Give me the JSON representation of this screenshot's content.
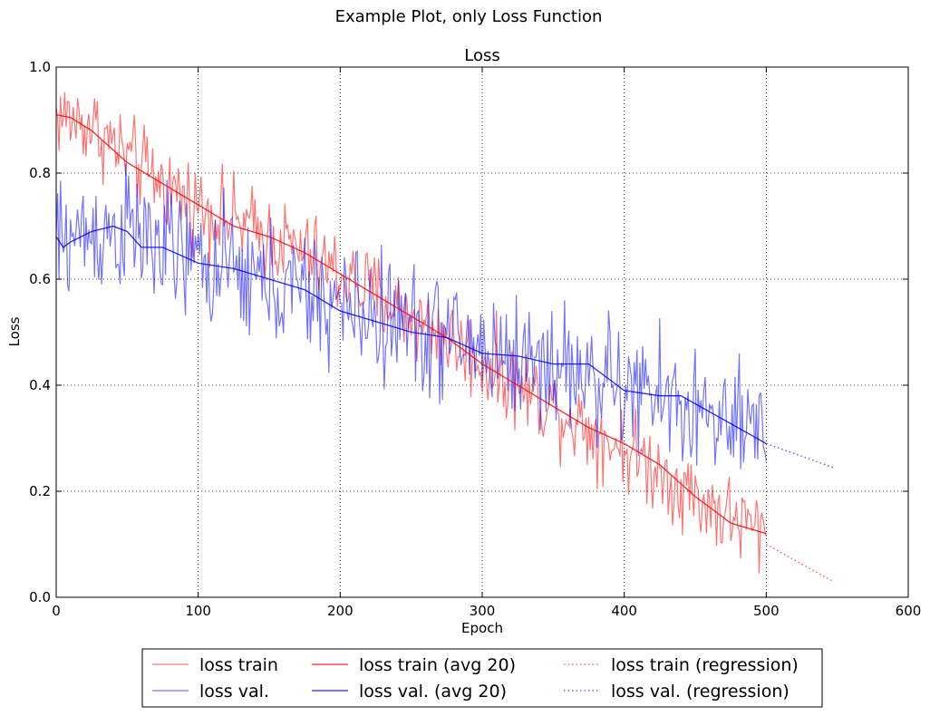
{
  "figure_title": "Example Plot, only Loss Function",
  "chart_data": {
    "type": "line",
    "title": "Loss",
    "xlabel": "Epoch",
    "ylabel": "Loss",
    "xlim": [
      0,
      600
    ],
    "ylim": [
      0.0,
      1.0
    ],
    "grid": true,
    "legend_position": "bottom-center (below plot), 3 columns",
    "x_ticks": [
      0,
      100,
      200,
      300,
      400,
      500,
      600
    ],
    "x_tick_labels": [
      "0",
      "100",
      "200",
      "300",
      "400",
      "500",
      "600"
    ],
    "y_ticks": [
      0.0,
      0.2,
      0.4,
      0.6,
      0.8,
      1.0
    ],
    "y_tick_labels": [
      "0.0",
      "0.2",
      "0.4",
      "0.6",
      "0.8",
      "1.0"
    ],
    "series": [
      {
        "name": "loss train",
        "style": "solid",
        "color": "#ff0000",
        "opacity": 0.55,
        "noisy": true,
        "noise_amplitude": 0.04,
        "x": [
          0,
          25,
          50,
          75,
          100,
          125,
          150,
          175,
          200,
          225,
          250,
          275,
          300,
          325,
          350,
          375,
          400,
          425,
          450,
          475,
          500
        ],
        "values": [
          0.91,
          0.89,
          0.83,
          0.78,
          0.74,
          0.71,
          0.68,
          0.65,
          0.61,
          0.57,
          0.53,
          0.49,
          0.44,
          0.4,
          0.36,
          0.32,
          0.28,
          0.24,
          0.19,
          0.15,
          0.12
        ]
      },
      {
        "name": "loss val.",
        "style": "solid",
        "color": "#0000ff",
        "opacity": 0.55,
        "noisy": true,
        "noise_amplitude": 0.06,
        "x": [
          0,
          25,
          50,
          75,
          100,
          125,
          150,
          175,
          200,
          225,
          250,
          275,
          300,
          325,
          350,
          375,
          400,
          425,
          450,
          475,
          500
        ],
        "values": [
          0.67,
          0.69,
          0.69,
          0.66,
          0.63,
          0.61,
          0.59,
          0.57,
          0.55,
          0.53,
          0.51,
          0.49,
          0.47,
          0.45,
          0.44,
          0.42,
          0.39,
          0.38,
          0.35,
          0.32,
          0.29
        ]
      },
      {
        "name": "loss train (avg 20)",
        "style": "solid",
        "color": "#ff0000",
        "opacity": 0.85,
        "noisy": false,
        "x": [
          0,
          10,
          25,
          50,
          75,
          100,
          125,
          150,
          175,
          200,
          225,
          250,
          275,
          300,
          325,
          350,
          375,
          400,
          425,
          450,
          475,
          500
        ],
        "values": [
          0.91,
          0.905,
          0.88,
          0.82,
          0.78,
          0.74,
          0.7,
          0.68,
          0.65,
          0.61,
          0.57,
          0.53,
          0.49,
          0.44,
          0.4,
          0.36,
          0.32,
          0.29,
          0.25,
          0.19,
          0.14,
          0.12
        ]
      },
      {
        "name": "loss val. (avg 20)",
        "style": "solid",
        "color": "#0000ff",
        "opacity": 0.85,
        "noisy": false,
        "x": [
          0,
          5,
          10,
          25,
          40,
          50,
          60,
          75,
          100,
          125,
          150,
          175,
          200,
          225,
          250,
          275,
          300,
          325,
          350,
          375,
          400,
          425,
          440,
          460,
          480,
          500
        ],
        "values": [
          0.68,
          0.66,
          0.67,
          0.69,
          0.7,
          0.69,
          0.66,
          0.66,
          0.63,
          0.62,
          0.6,
          0.58,
          0.54,
          0.52,
          0.5,
          0.49,
          0.46,
          0.455,
          0.44,
          0.44,
          0.39,
          0.38,
          0.38,
          0.35,
          0.32,
          0.29
        ]
      },
      {
        "name": "loss train (regression)",
        "style": "dotted",
        "color": "#ff0000",
        "opacity": 0.7,
        "noisy": false,
        "x": [
          500,
          547
        ],
        "values": [
          0.1,
          0.03
        ]
      },
      {
        "name": "loss val. (regression)",
        "style": "dotted",
        "color": "#0000ff",
        "opacity": 0.7,
        "noisy": false,
        "x": [
          500,
          547
        ],
        "values": [
          0.29,
          0.245
        ]
      }
    ]
  }
}
